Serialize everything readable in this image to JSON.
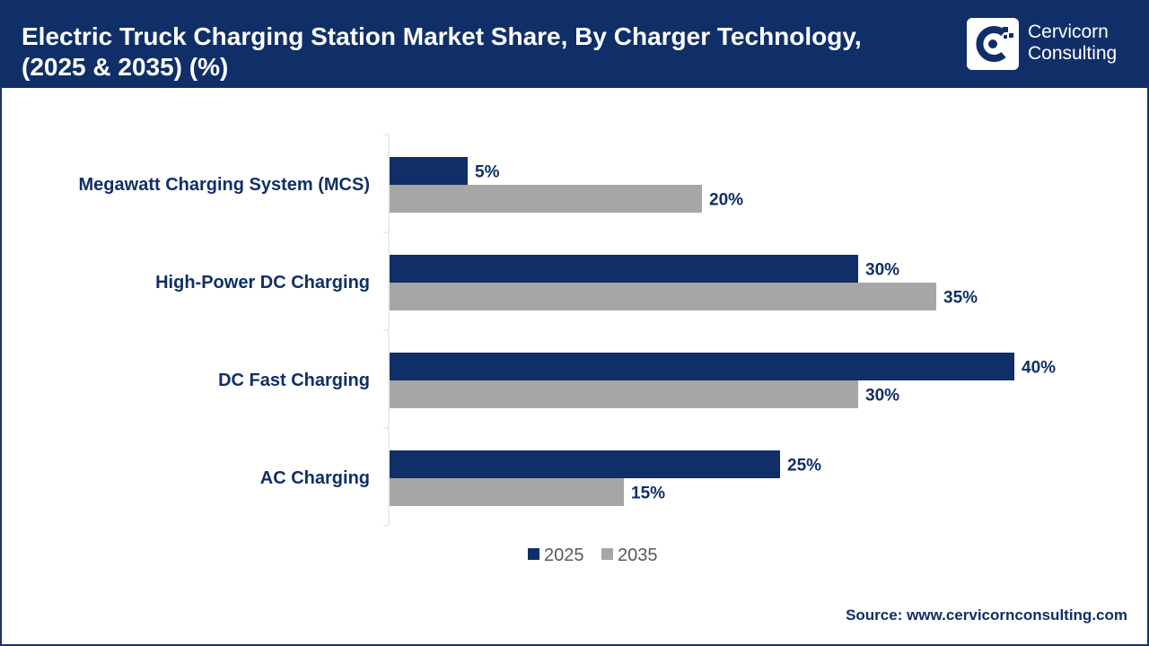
{
  "header": {
    "title_line1": "Electric Truck Charging Station Market Share, By Charger Technology,",
    "title_line2": "(2025 & 2035) (%)",
    "logo_name_line1": "Cervicorn",
    "logo_name_line2": "Consulting",
    "logo_icon": "cervicorn-c-logo-icon"
  },
  "chart_data": {
    "type": "bar",
    "orientation": "horizontal",
    "categories": [
      "Megawatt Charging System (MCS)",
      "High-Power DC Charging",
      "DC Fast Charging",
      "AC Charging"
    ],
    "series": [
      {
        "name": "2025",
        "values": [
          5,
          30,
          40,
          25
        ],
        "color": "#102f68"
      },
      {
        "name": "2035",
        "values": [
          20,
          35,
          30,
          15
        ],
        "color": "#a6a6a6"
      }
    ],
    "value_suffix": "%",
    "xlim": [
      0,
      40
    ],
    "grid": false,
    "legend_position": "bottom-center",
    "label_color": "#102f68"
  },
  "footer": {
    "source": "Source: www.cervicornconsulting.com"
  }
}
